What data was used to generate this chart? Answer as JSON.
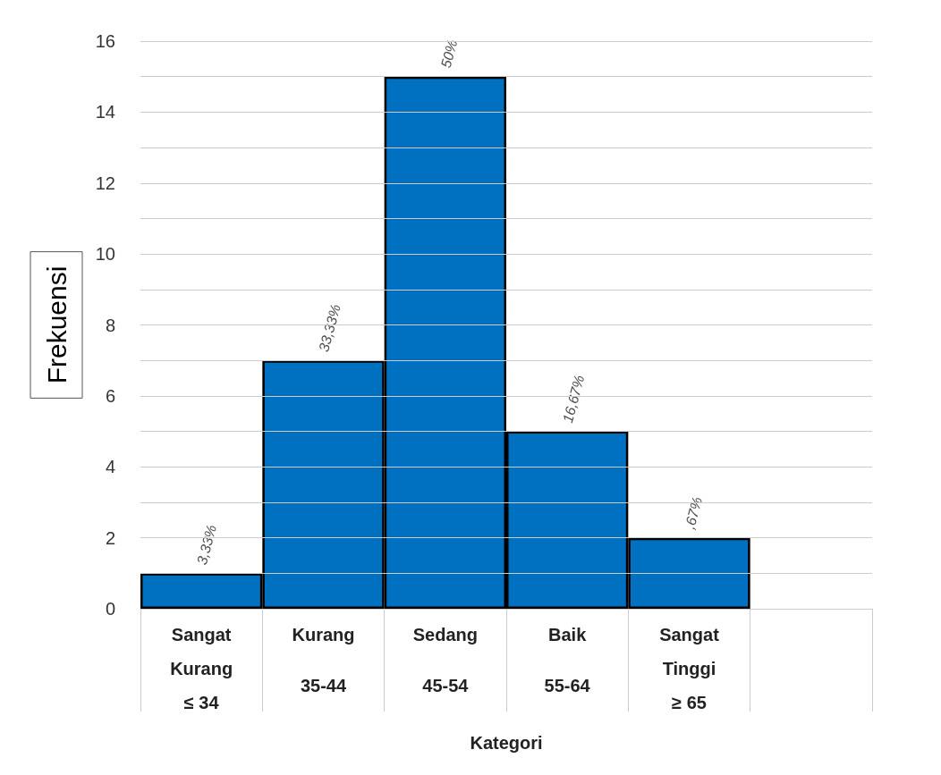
{
  "chart_data": {
    "type": "bar",
    "xlabel": "Kategori",
    "ylabel": "Frekuensi",
    "categories": [
      "Sangat\nKurang\n≤ 34",
      "Kurang\n35-44",
      "Sedang\n45-54",
      "Baik\n55-64",
      "Sangat\nTinggi\n≥ 65",
      null
    ],
    "values": [
      1,
      7,
      15,
      5,
      2,
      null
    ],
    "color": "#0070c0",
    "annotations": [
      {
        "text": "3,33%",
        "x": "Sangat\nKurang\n≤ 34",
        "y": 1
      },
      {
        "text": "33,33%",
        "x": "Kurang\n35-44",
        "y": 7
      },
      {
        "text": "50%",
        "x": "Sedang\n45-54",
        "y": 15
      },
      {
        "text": "16,67%",
        "x": "Baik\n55-64",
        "y": 5
      },
      {
        "text": ",67%",
        "x": "Sangat\nTinggi\n≥ 65",
        "y": 2
      }
    ],
    "ylim": [
      0,
      16
    ],
    "yticks": [
      0,
      {
        "value": 1,
        "label": null
      },
      2,
      {
        "value": 3,
        "label": null
      },
      4,
      {
        "value": 5,
        "label": null
      },
      6,
      {
        "value": 7,
        "label": null
      },
      8,
      {
        "value": 9,
        "label": null
      },
      10,
      {
        "value": 11,
        "label": null
      },
      12,
      {
        "value": 13,
        "label": null
      },
      14,
      {
        "value": 15,
        "label": null
      },
      16
    ],
    "grid": "y"
  }
}
